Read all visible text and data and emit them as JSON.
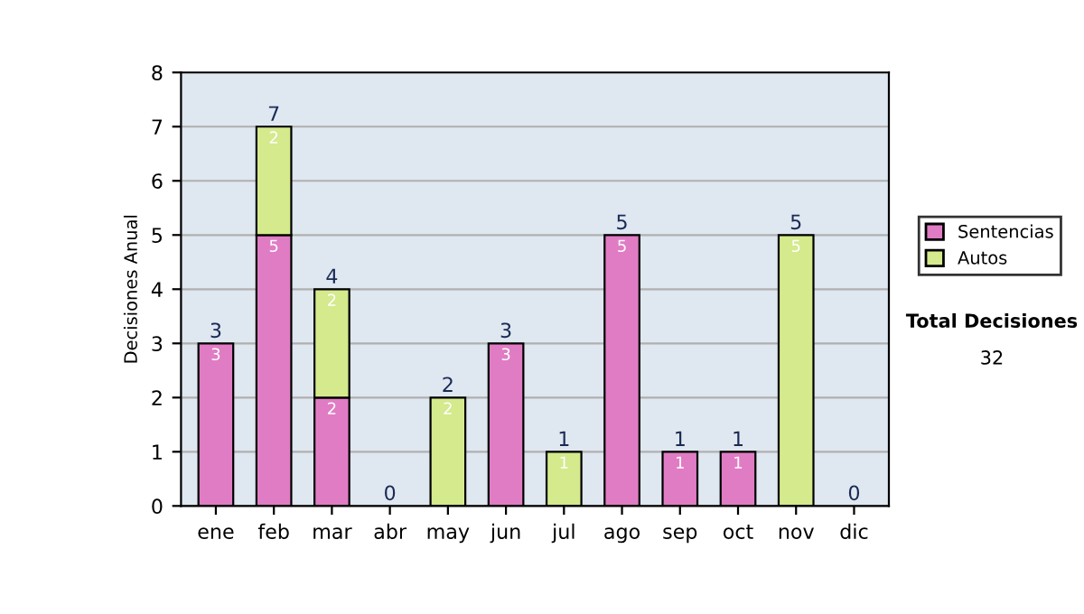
{
  "chart_data": {
    "type": "bar",
    "stacked": true,
    "ylabel": "Decisiones Anual",
    "categories": [
      "ene",
      "feb",
      "mar",
      "abr",
      "may",
      "jun",
      "jul",
      "ago",
      "sep",
      "oct",
      "nov",
      "dic"
    ],
    "series": [
      {
        "name": "Sentencias",
        "color": "#e07cc4",
        "values": [
          3,
          5,
          2,
          0,
          0,
          3,
          0,
          5,
          1,
          1,
          0,
          0
        ],
        "value_labels": [
          "3",
          "5",
          "2",
          null,
          null,
          "3",
          null,
          "5",
          "1",
          "1",
          null,
          null
        ]
      },
      {
        "name": "Autos",
        "color": "#d4ea8c",
        "values": [
          0,
          2,
          2,
          0,
          2,
          0,
          1,
          0,
          0,
          0,
          5,
          0
        ],
        "value_labels": [
          null,
          "2",
          "2",
          null,
          "2",
          null,
          "1",
          null,
          null,
          null,
          "5",
          null
        ]
      }
    ],
    "totals": [
      "3",
      "7",
      "4",
      "0",
      "2",
      "3",
      "1",
      "5",
      "1",
      "1",
      "5",
      "0"
    ],
    "ylim": [
      0,
      8
    ],
    "yticks": [
      0,
      1,
      2,
      3,
      4,
      5,
      6,
      7,
      8
    ],
    "grid": "y",
    "legend": "right",
    "annotations": [
      "Total Decisiones",
      "32"
    ]
  }
}
